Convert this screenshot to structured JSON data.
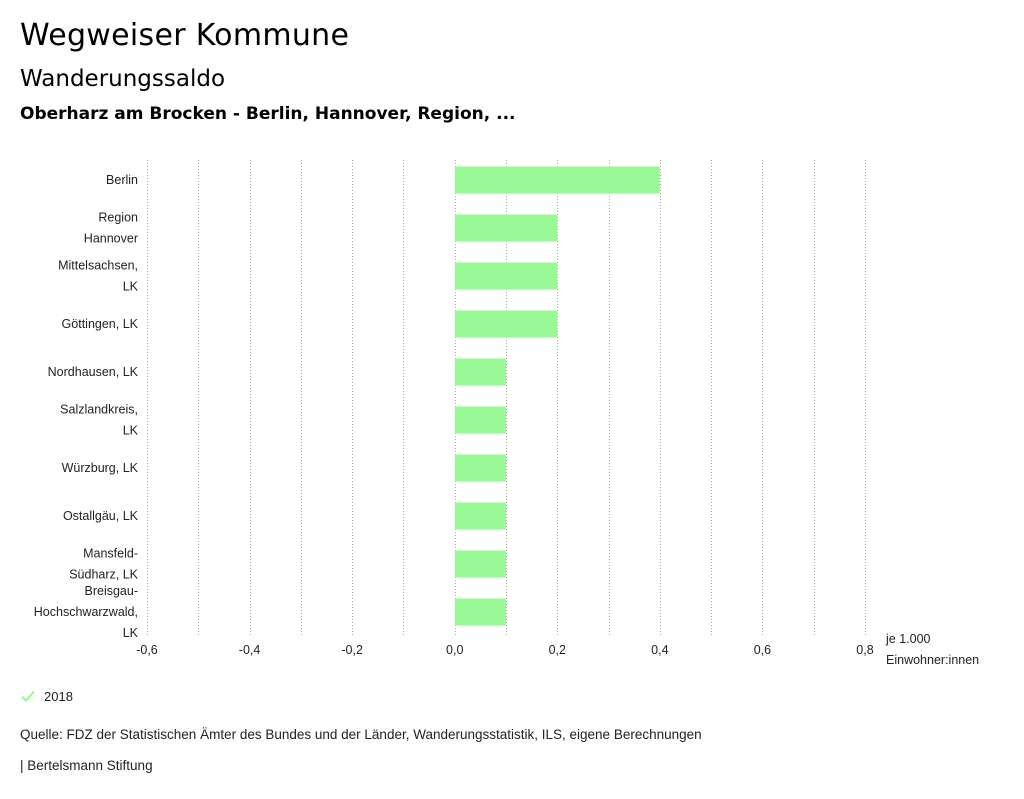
{
  "header": {
    "title": "Wegweiser Kommune",
    "subtitle": "Wanderungssaldo",
    "region": "Oberharz am Brocken - Berlin, Hannover, Region, ..."
  },
  "chart_data": {
    "type": "bar",
    "orientation": "horizontal",
    "categories": [
      [
        "Berlin"
      ],
      [
        "Region",
        "Hannover"
      ],
      [
        "Mittelsachsen,",
        "LK"
      ],
      [
        "Göttingen, LK"
      ],
      [
        "Nordhausen, LK"
      ],
      [
        "Salzlandkreis,",
        "LK"
      ],
      [
        "Würzburg, LK"
      ],
      [
        "Ostallgäu, LK"
      ],
      [
        "Mansfeld-",
        "Südharz, LK"
      ],
      [
        "Breisgau-",
        "Hochschwarzwald,",
        "LK"
      ]
    ],
    "series": [
      {
        "name": "2018",
        "values": [
          0.4,
          0.2,
          0.2,
          0.2,
          0.1,
          0.1,
          0.1,
          0.1,
          0.1,
          0.1
        ]
      }
    ],
    "xlim": [
      -0.6,
      0.8
    ],
    "ticks": [
      -0.6,
      -0.4,
      -0.2,
      0.0,
      0.2,
      0.4,
      0.6,
      0.8
    ],
    "tick_labels": [
      "-0,6",
      "-0,4",
      "-0,2",
      "0,0",
      "0,2",
      "0,4",
      "0,6",
      "0,8"
    ],
    "gridlines": "vertical dotted",
    "unit": [
      "je 1.000",
      "Einwohner:innen"
    ],
    "bar_color": "#99f994",
    "legend_position": "bottom-left"
  },
  "footer": {
    "source": "Quelle: FDZ der Statistischen Ämter des Bundes und der Länder, Wanderungsstatistik, ILS, eigene Berechnungen",
    "organization": "| Bertelsmann Stiftung"
  }
}
